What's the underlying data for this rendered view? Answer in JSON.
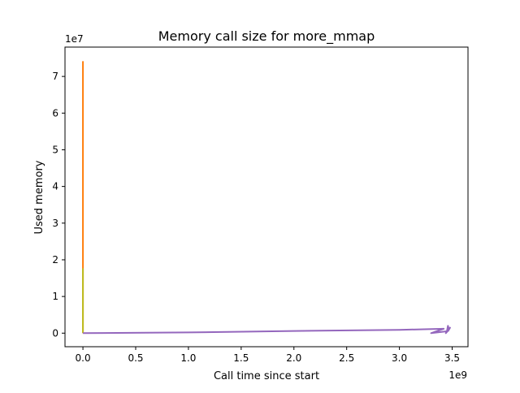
{
  "chart_data": {
    "type": "line",
    "title": "Memory call size for more_mmap",
    "xlabel": "Call time since start",
    "ylabel": "Used memory",
    "x_offset_label": "1e9",
    "y_offset_label": "1e7",
    "xlim": [
      -0.17,
      3.65
    ],
    "ylim": [
      -0.37,
      7.8
    ],
    "x_ticks": [
      0.0,
      0.5,
      1.0,
      1.5,
      2.0,
      2.5,
      3.0,
      3.5
    ],
    "x_tick_labels": [
      "0.0",
      "0.5",
      "1.0",
      "1.5",
      "2.0",
      "2.5",
      "3.0",
      "3.5"
    ],
    "y_ticks": [
      0,
      1,
      2,
      3,
      4,
      5,
      6,
      7
    ],
    "y_tick_labels": [
      "0",
      "1",
      "2",
      "3",
      "4",
      "5",
      "6",
      "7"
    ],
    "grid": false,
    "series": [
      {
        "color": "#ff7f0e",
        "x": [
          0.0,
          0.0,
          0.0,
          0.0
        ],
        "y": [
          0.0,
          7.4,
          7.3,
          1.7
        ]
      },
      {
        "color": "#bcbd22",
        "x": [
          0.0,
          0.0,
          0.0
        ],
        "y": [
          0.0,
          1.75,
          0.0
        ]
      },
      {
        "color": "#9467bd",
        "x": [
          0.0,
          1.0,
          2.0,
          3.0,
          3.42,
          3.3,
          3.45,
          3.46,
          3.47,
          3.44,
          3.48,
          3.46
        ],
        "y": [
          0.0,
          0.02,
          0.06,
          0.09,
          0.12,
          0.0,
          0.05,
          0.2,
          0.1,
          0.0,
          0.15,
          0.05
        ]
      }
    ]
  }
}
